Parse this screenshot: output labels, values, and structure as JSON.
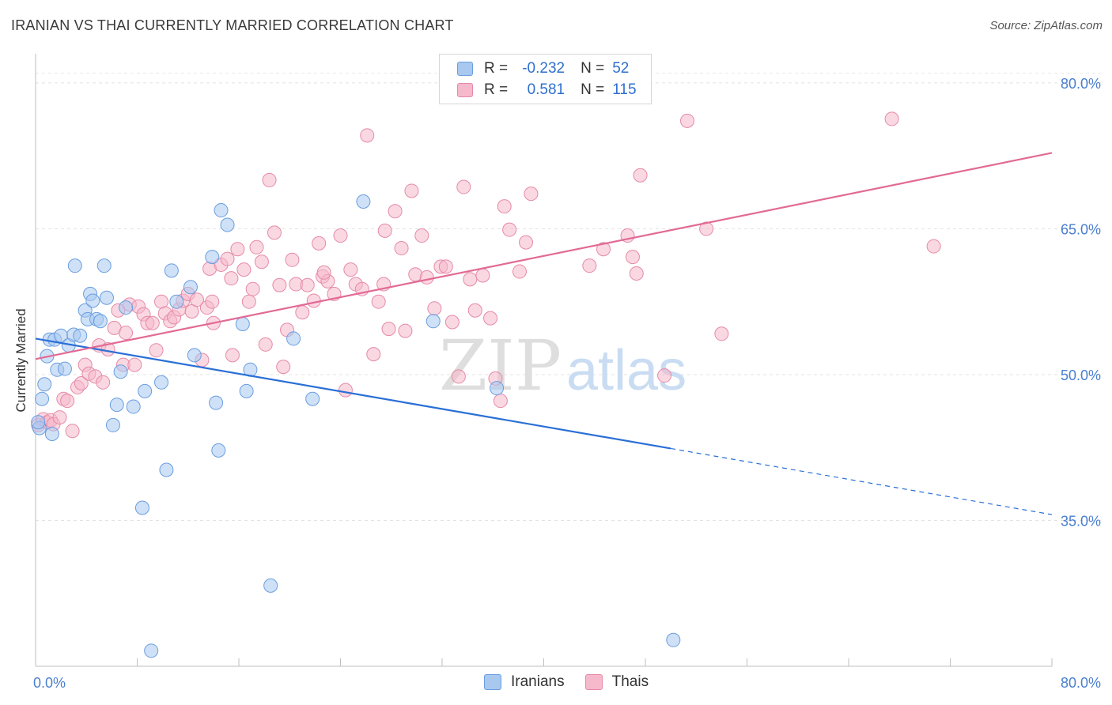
{
  "header": {
    "title": "IRANIAN VS THAI CURRENTLY MARRIED CORRELATION CHART",
    "source": "Source: ZipAtlas.com"
  },
  "watermark": {
    "zip": "ZIP",
    "atlas": "atlas"
  },
  "legend_top": {
    "rows": [
      {
        "r_label": "R =",
        "r_value": "-0.232",
        "n_label": "N =",
        "n_value": "52",
        "color": "#a8c8f0"
      },
      {
        "r_label": "R =",
        "r_value": "0.581",
        "n_label": "N =",
        "n_value": "115",
        "color": "#f6b8cb"
      }
    ]
  },
  "legend_bottom": {
    "items": [
      {
        "label": "Iranians",
        "color": "#a8c8f0"
      },
      {
        "label": "Thais",
        "color": "#f6b8cb"
      }
    ]
  },
  "colors": {
    "iranians_fill": "#a8c8f0",
    "iranians_stroke": "#6a9ee0",
    "iranians_line": "#2a6fd6",
    "thais_fill": "#f6b8cb",
    "thais_stroke": "#e58aa8",
    "thais_line": "#e26a95",
    "axis_tick": "#4a7fd0"
  },
  "chart_data": {
    "type": "scatter",
    "title": "IRANIAN VS THAI CURRENTLY MARRIED CORRELATION CHART",
    "xlabel": "",
    "ylabel": "Currently Married",
    "xlim": [
      0,
      80
    ],
    "ylim": [
      20,
      83
    ],
    "x_tick_labels": [
      "0.0%",
      "80.0%"
    ],
    "y_ticks": [
      35,
      50,
      65,
      80
    ],
    "y_tick_labels": [
      "35.0%",
      "50.0%",
      "65.0%",
      "80.0%"
    ],
    "grid": true,
    "series": [
      {
        "name": "Iranians",
        "r": -0.232,
        "n": 52,
        "trend": {
          "x_start": 0,
          "y_start": 53.7,
          "x_solid_end": 50,
          "y_solid_end": 42.4,
          "x_dash_end": 80,
          "y_dash_end": 35.6
        },
        "points": [
          [
            0.3,
            44.5
          ],
          [
            0.5,
            47.5
          ],
          [
            0.7,
            49
          ],
          [
            0.9,
            51.9
          ],
          [
            1.1,
            53.6
          ],
          [
            1.3,
            43.9
          ],
          [
            1.5,
            53.6
          ],
          [
            1.7,
            50.5
          ],
          [
            2.0,
            54
          ],
          [
            2.3,
            50.6
          ],
          [
            2.6,
            53
          ],
          [
            3.0,
            54.1
          ],
          [
            3.1,
            61.2
          ],
          [
            3.5,
            54
          ],
          [
            3.9,
            56.6
          ],
          [
            4.1,
            55.7
          ],
          [
            4.3,
            58.3
          ],
          [
            4.5,
            57.6
          ],
          [
            4.8,
            55.7
          ],
          [
            5.1,
            55.5
          ],
          [
            5.4,
            61.2
          ],
          [
            5.6,
            57.9
          ],
          [
            6.1,
            44.8
          ],
          [
            6.4,
            46.9
          ],
          [
            6.7,
            50.3
          ],
          [
            7.1,
            56.9
          ],
          [
            7.7,
            46.7
          ],
          [
            8.4,
            36.3
          ],
          [
            8.6,
            48.3
          ],
          [
            9.1,
            21.6
          ],
          [
            9.9,
            49.2
          ],
          [
            10.3,
            40.2
          ],
          [
            10.7,
            60.7
          ],
          [
            11.1,
            57.5
          ],
          [
            12.2,
            59
          ],
          [
            12.5,
            52
          ],
          [
            13.9,
            62.1
          ],
          [
            14.2,
            47.1
          ],
          [
            14.4,
            42.2
          ],
          [
            14.6,
            66.9
          ],
          [
            15.1,
            65.4
          ],
          [
            16.3,
            55.2
          ],
          [
            16.6,
            48.3
          ],
          [
            16.9,
            50.5
          ],
          [
            18.5,
            28.3
          ],
          [
            20.3,
            53.7
          ],
          [
            21.8,
            47.5
          ],
          [
            25.8,
            67.8
          ],
          [
            31.3,
            55.5
          ],
          [
            36.3,
            48.6
          ],
          [
            50.2,
            22.7
          ],
          [
            0.2,
            45.1
          ]
        ]
      },
      {
        "name": "Thais",
        "r": 0.581,
        "n": 115,
        "trend": {
          "x_start": 0,
          "y_start": 51.6,
          "x_end": 80,
          "y_end": 72.8
        },
        "points": [
          [
            0.2,
            44.8
          ],
          [
            0.6,
            45.4
          ],
          [
            0.9,
            45.1
          ],
          [
            1.2,
            45.3
          ],
          [
            1.4,
            44.9
          ],
          [
            1.9,
            45.6
          ],
          [
            2.2,
            47.5
          ],
          [
            2.5,
            47.3
          ],
          [
            2.9,
            44.2
          ],
          [
            3.3,
            48.7
          ],
          [
            3.6,
            49.1
          ],
          [
            3.9,
            51
          ],
          [
            4.2,
            50.1
          ],
          [
            4.7,
            49.8
          ],
          [
            5.0,
            53
          ],
          [
            5.3,
            49.2
          ],
          [
            5.7,
            52.6
          ],
          [
            6.2,
            54.8
          ],
          [
            6.5,
            56.6
          ],
          [
            6.9,
            51
          ],
          [
            7.1,
            54.3
          ],
          [
            7.4,
            57.2
          ],
          [
            7.8,
            51
          ],
          [
            8.1,
            57
          ],
          [
            8.5,
            56.2
          ],
          [
            8.8,
            55.3
          ],
          [
            9.2,
            55.3
          ],
          [
            9.5,
            52.5
          ],
          [
            9.9,
            57.5
          ],
          [
            10.2,
            56.3
          ],
          [
            10.6,
            55.5
          ],
          [
            10.9,
            55.9
          ],
          [
            11.3,
            56.7
          ],
          [
            11.6,
            57.6
          ],
          [
            12.0,
            58.3
          ],
          [
            12.3,
            56.5
          ],
          [
            12.7,
            57.7
          ],
          [
            13.1,
            51.5
          ],
          [
            13.5,
            56.9
          ],
          [
            13.7,
            60.9
          ],
          [
            14.0,
            55.3
          ],
          [
            14.6,
            61.3
          ],
          [
            15.1,
            61.9
          ],
          [
            15.5,
            52
          ],
          [
            15.9,
            62.9
          ],
          [
            16.4,
            60.8
          ],
          [
            16.8,
            57.5
          ],
          [
            17.1,
            58.8
          ],
          [
            17.4,
            63.1
          ],
          [
            17.8,
            61.6
          ],
          [
            18.1,
            53.1
          ],
          [
            18.4,
            70
          ],
          [
            18.8,
            64.6
          ],
          [
            19.2,
            59.2
          ],
          [
            19.5,
            50.8
          ],
          [
            19.8,
            54.6
          ],
          [
            20.2,
            61.8
          ],
          [
            20.5,
            59.3
          ],
          [
            21.0,
            56.4
          ],
          [
            21.4,
            59.2
          ],
          [
            21.9,
            57.6
          ],
          [
            22.3,
            63.5
          ],
          [
            22.6,
            60.1
          ],
          [
            23.0,
            59.6
          ],
          [
            23.5,
            58.3
          ],
          [
            24.0,
            64.3
          ],
          [
            24.4,
            48.4
          ],
          [
            24.8,
            60.8
          ],
          [
            25.2,
            59.3
          ],
          [
            25.7,
            58.8
          ],
          [
            26.1,
            74.6
          ],
          [
            26.6,
            52.1
          ],
          [
            27.0,
            57.5
          ],
          [
            27.4,
            59.3
          ],
          [
            27.8,
            54.7
          ],
          [
            28.3,
            66.8
          ],
          [
            28.8,
            63
          ],
          [
            29.1,
            54.5
          ],
          [
            29.6,
            68.9
          ],
          [
            29.9,
            60.3
          ],
          [
            30.4,
            64.3
          ],
          [
            30.8,
            60
          ],
          [
            31.4,
            56.8
          ],
          [
            31.9,
            61.1
          ],
          [
            32.3,
            61.1
          ],
          [
            32.8,
            55.4
          ],
          [
            33.3,
            49.8
          ],
          [
            33.7,
            69.3
          ],
          [
            34.2,
            59.8
          ],
          [
            34.6,
            56.6
          ],
          [
            35.2,
            60.2
          ],
          [
            35.8,
            55.8
          ],
          [
            36.2,
            49.6
          ],
          [
            36.6,
            47.3
          ],
          [
            36.9,
            67.3
          ],
          [
            37.3,
            64.9
          ],
          [
            38.1,
            60.6
          ],
          [
            38.6,
            63.6
          ],
          [
            39.0,
            68.6
          ],
          [
            43.6,
            61.2
          ],
          [
            44.7,
            62.9
          ],
          [
            46.6,
            64.3
          ],
          [
            47.0,
            62.1
          ],
          [
            47.3,
            60.4
          ],
          [
            47.6,
            70.5
          ],
          [
            49.5,
            49.9
          ],
          [
            51.3,
            76.1
          ],
          [
            52.8,
            65
          ],
          [
            54.0,
            54.2
          ],
          [
            67.4,
            76.3
          ],
          [
            70.7,
            63.2
          ],
          [
            27.5,
            64.8
          ],
          [
            22.7,
            60.5
          ],
          [
            15.4,
            59.9
          ],
          [
            13.9,
            57.5
          ]
        ]
      }
    ]
  }
}
